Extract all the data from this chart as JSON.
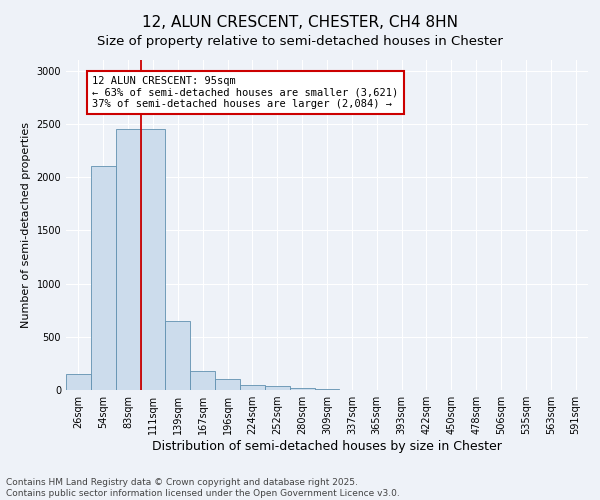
{
  "title": "12, ALUN CRESCENT, CHESTER, CH4 8HN",
  "subtitle": "Size of property relative to semi-detached houses in Chester",
  "xlabel": "Distribution of semi-detached houses by size in Chester",
  "ylabel": "Number of semi-detached properties",
  "categories": [
    "26sqm",
    "54sqm",
    "83sqm",
    "111sqm",
    "139sqm",
    "167sqm",
    "196sqm",
    "224sqm",
    "252sqm",
    "280sqm",
    "309sqm",
    "337sqm",
    "365sqm",
    "393sqm",
    "422sqm",
    "450sqm",
    "478sqm",
    "506sqm",
    "535sqm",
    "563sqm",
    "591sqm"
  ],
  "values": [
    150,
    2100,
    2450,
    2450,
    650,
    180,
    100,
    50,
    40,
    15,
    5,
    0,
    0,
    0,
    0,
    0,
    0,
    0,
    0,
    0,
    0
  ],
  "bar_color": "#ccdcec",
  "bar_edge_color": "#6090b0",
  "annotation_text": "12 ALUN CRESCENT: 95sqm\n← 63% of semi-detached houses are smaller (3,621)\n37% of semi-detached houses are larger (2,084) →",
  "annotation_box_color": "#ffffff",
  "annotation_box_edge": "#cc0000",
  "red_line_color": "#cc0000",
  "ylim": [
    0,
    3100
  ],
  "yticks": [
    0,
    500,
    1000,
    1500,
    2000,
    2500,
    3000
  ],
  "background_color": "#eef2f8",
  "grid_color": "#ffffff",
  "footer_line1": "Contains HM Land Registry data © Crown copyright and database right 2025.",
  "footer_line2": "Contains public sector information licensed under the Open Government Licence v3.0.",
  "title_fontsize": 11,
  "subtitle_fontsize": 9.5,
  "xlabel_fontsize": 9,
  "ylabel_fontsize": 8,
  "tick_fontsize": 7,
  "annotation_fontsize": 7.5,
  "footer_fontsize": 6.5
}
